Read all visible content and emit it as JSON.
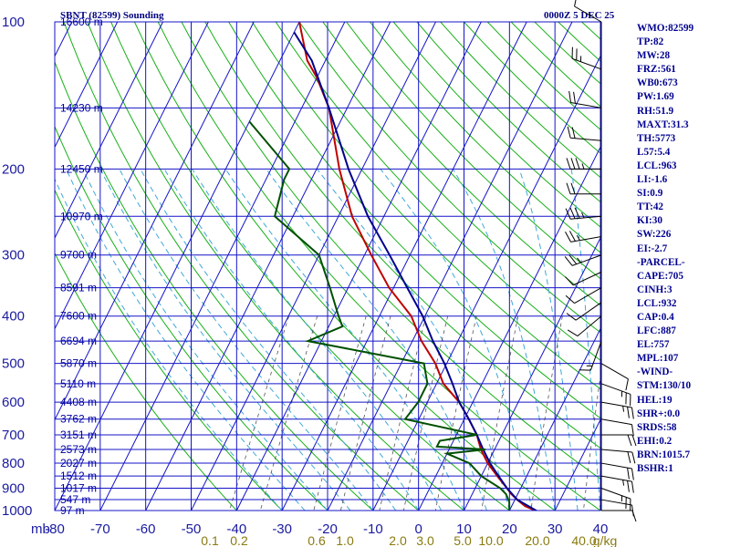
{
  "header": {
    "station": "SBNT (82599) Sounding",
    "time": "0000Z  5 DEC 25"
  },
  "indices": [
    "WMO:82599",
    "TP:82",
    "MW:28",
    "FRZ:561",
    "WB0:673",
    "PW:1.69",
    "RH:51.9",
    "MAXT:31.3",
    "TH:5773",
    "L57:5.4",
    "LCL:963",
    "LI:-1.6",
    "SI:0.9",
    "TT:42",
    "KI:30",
    "SW:226",
    "EI:-2.7",
    "-PARCEL-",
    "CAPE:705",
    "CINH:3",
    "LCL:932",
    "CAP:0.4",
    "LFC:887",
    "EL:757",
    "MPL:107",
    "-WIND-",
    "STM:130/10",
    "HEL:19",
    "SHR+:0.0",
    "SRDS:58",
    "EHI:0.2",
    "BRN:1015.7",
    "BSHR:1"
  ],
  "chart_data": {
    "type": "line",
    "title": "SBNT (82599) Sounding",
    "xlabel": "",
    "ylabel": "mb",
    "pressure_ticks": [
      "100",
      "200",
      "300",
      "400",
      "500",
      "600",
      "700",
      "800",
      "900",
      "1000"
    ],
    "temperature_ticks": [
      "-80",
      "-70",
      "-60",
      "-50",
      "-40",
      "-30",
      "-20",
      "-10",
      "0",
      "10",
      "20",
      "30",
      "40"
    ],
    "mixing_ratio_labels": [
      "0.1",
      "0.2",
      "0.6",
      "1.0",
      "2.0",
      "3.0",
      "5.0",
      "10.0",
      "20.0",
      "40.0",
      "g/kg"
    ],
    "height_labels": [
      {
        "p": 100,
        "label": "16600 m"
      },
      {
        "p": 150,
        "label": "14230 m"
      },
      {
        "p": 200,
        "label": "12450 m"
      },
      {
        "p": 250,
        "label": "10970 m"
      },
      {
        "p": 300,
        "label": "9700 m"
      },
      {
        "p": 350,
        "label": "8591 m"
      },
      {
        "p": 400,
        "label": "7600 m"
      },
      {
        "p": 450,
        "label": "6694 m"
      },
      {
        "p": 500,
        "label": "5870 m"
      },
      {
        "p": 550,
        "label": "5110 m"
      },
      {
        "p": 600,
        "label": "4408 m"
      },
      {
        "p": 650,
        "label": "3762 m"
      },
      {
        "p": 700,
        "label": "3151 m"
      },
      {
        "p": 750,
        "label": "2573 m"
      },
      {
        "p": 800,
        "label": "2027 m"
      },
      {
        "p": 850,
        "label": "1512 m"
      },
      {
        "p": 900,
        "label": "1017 m"
      },
      {
        "p": 950,
        "label": "547 m"
      },
      {
        "p": 1000,
        "label": "97 m"
      }
    ],
    "ylim": [
      100,
      1000
    ],
    "xlim": [
      -80,
      40
    ],
    "series": [
      {
        "name": "",
        "color": "#c00000",
        "points": [
          [
            1006,
            26.5
          ],
          [
            980,
            23.0
          ],
          [
            950,
            20.5
          ],
          [
            925,
            18.6
          ],
          [
            900,
            17.0
          ],
          [
            850,
            13.5
          ],
          [
            800,
            10.0
          ],
          [
            750,
            7.0
          ],
          [
            700,
            4.5
          ],
          [
            650,
            1.0
          ],
          [
            600,
            -3.0
          ],
          [
            550,
            -8.5
          ],
          [
            500,
            -12.5
          ],
          [
            450,
            -18.0
          ],
          [
            400,
            -23.0
          ],
          [
            350,
            -31.0
          ],
          [
            300,
            -38.5
          ],
          [
            250,
            -47.0
          ],
          [
            200,
            -55.0
          ],
          [
            150,
            -64.0
          ],
          [
            130,
            -70.0
          ],
          [
            120,
            -74.0
          ],
          [
            100,
            -80.0
          ]
        ]
      },
      {
        "name": "",
        "color": "#00008c",
        "points": [
          [
            1006,
            26.5
          ],
          [
            950,
            20.5
          ],
          [
            900,
            17.0
          ],
          [
            850,
            13.8
          ],
          [
            800,
            10.5
          ],
          [
            750,
            7.5
          ],
          [
            700,
            4.5
          ],
          [
            650,
            1.0
          ],
          [
            600,
            -3.0
          ],
          [
            550,
            -6.5
          ],
          [
            500,
            -10.5
          ],
          [
            450,
            -15.5
          ],
          [
            400,
            -20.5
          ],
          [
            350,
            -27.0
          ],
          [
            300,
            -34.5
          ],
          [
            250,
            -43.5
          ],
          [
            200,
            -53.0
          ],
          [
            150,
            -64.0
          ],
          [
            120,
            -73.0
          ],
          [
            105,
            -80.0
          ]
        ]
      },
      {
        "name": "",
        "color": "#005000",
        "points": [
          [
            1000,
            20.0
          ],
          [
            960,
            19.0
          ],
          [
            925,
            17.4
          ],
          [
            900,
            15.5
          ],
          [
            850,
            10.0
          ],
          [
            800,
            6.0
          ],
          [
            765,
            0.0
          ],
          [
            750,
            8.0
          ],
          [
            740,
            -3.0
          ],
          [
            720,
            -3.0
          ],
          [
            700,
            4.5
          ],
          [
            650,
            -13.0
          ],
          [
            600,
            -12.0
          ],
          [
            550,
            -12.0
          ],
          [
            500,
            -15.0
          ],
          [
            450,
            -43.0
          ],
          [
            420,
            -37.0
          ],
          [
            400,
            -39.0
          ],
          [
            350,
            -44.0
          ],
          [
            300,
            -50.0
          ],
          [
            250,
            -64.0
          ],
          [
            210,
            -66.0
          ],
          [
            200,
            -66.0
          ],
          [
            160,
            -80.0
          ]
        ]
      }
    ],
    "wind_barbs": [
      {
        "p": 100,
        "dir": 300,
        "kt": 10
      },
      {
        "p": 125,
        "dir": 290,
        "kt": 15
      },
      {
        "p": 150,
        "dir": 280,
        "kt": 20
      },
      {
        "p": 175,
        "dir": 275,
        "kt": 20
      },
      {
        "p": 200,
        "dir": 270,
        "kt": 25
      },
      {
        "p": 225,
        "dir": 270,
        "kt": 20
      },
      {
        "p": 250,
        "dir": 265,
        "kt": 25
      },
      {
        "p": 275,
        "dir": 260,
        "kt": 15
      },
      {
        "p": 300,
        "dir": 250,
        "kt": 15
      },
      {
        "p": 325,
        "dir": 245,
        "kt": 10
      },
      {
        "p": 350,
        "dir": 240,
        "kt": 10
      },
      {
        "p": 375,
        "dir": 235,
        "kt": 10
      },
      {
        "p": 400,
        "dir": 230,
        "kt": 10
      },
      {
        "p": 450,
        "dir": 200,
        "kt": 5
      },
      {
        "p": 500,
        "dir": 120,
        "kt": 10
      },
      {
        "p": 550,
        "dir": 110,
        "kt": 15
      },
      {
        "p": 600,
        "dir": 100,
        "kt": 15
      },
      {
        "p": 650,
        "dir": 100,
        "kt": 10
      },
      {
        "p": 700,
        "dir": 90,
        "kt": 20
      },
      {
        "p": 750,
        "dir": 95,
        "kt": 20
      },
      {
        "p": 800,
        "dir": 100,
        "kt": 20
      },
      {
        "p": 850,
        "dir": 100,
        "kt": 15
      },
      {
        "p": 900,
        "dir": 110,
        "kt": 15
      },
      {
        "p": 950,
        "dir": 100,
        "kt": 10
      },
      {
        "p": 1000,
        "dir": 90,
        "kt": 10
      }
    ]
  }
}
